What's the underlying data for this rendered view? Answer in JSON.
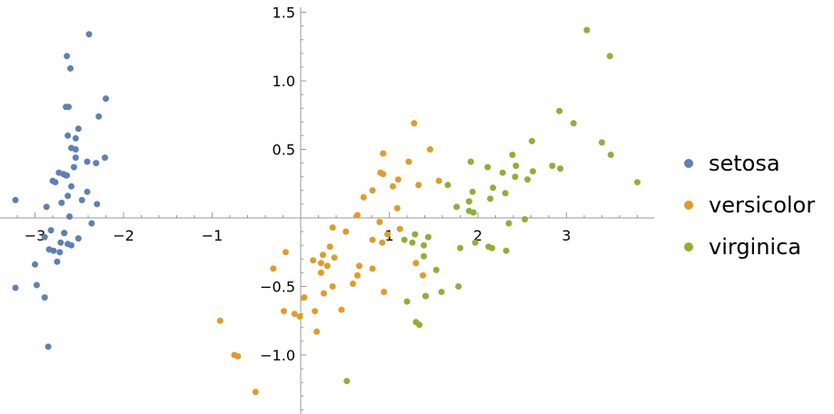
{
  "chart_data": {
    "type": "scatter",
    "title": "",
    "xlabel": "",
    "ylabel": "",
    "xlim": [
      -3.35,
      3.85
    ],
    "ylim": [
      -1.4,
      1.55
    ],
    "grid": false,
    "legend_position": "right",
    "x_ticks": [
      {
        "value": -3,
        "label": "−3"
      },
      {
        "value": -2,
        "label": "−2"
      },
      {
        "value": -1,
        "label": "−1"
      },
      {
        "value": 1,
        "label": "1"
      },
      {
        "value": 2,
        "label": "2"
      },
      {
        "value": 3,
        "label": "3"
      }
    ],
    "y_ticks": [
      {
        "value": 1.5,
        "label": "1.5"
      },
      {
        "value": 1.0,
        "label": "1.0"
      },
      {
        "value": 0.5,
        "label": "0.5"
      },
      {
        "value": -0.5,
        "label": "−0.5"
      },
      {
        "value": -1.0,
        "label": "−1.0"
      }
    ],
    "series": [
      {
        "name": "setosa",
        "color": "#5E81B5",
        "points": [
          [
            -2.68,
            0.32
          ],
          [
            -2.71,
            -0.18
          ],
          [
            -2.89,
            -0.14
          ],
          [
            -2.75,
            -0.32
          ],
          [
            -2.73,
            0.33
          ],
          [
            -2.28,
            0.74
          ],
          [
            -2.82,
            -0.09
          ],
          [
            -2.63,
            0.16
          ],
          [
            -2.89,
            -0.58
          ],
          [
            -2.67,
            -0.11
          ],
          [
            -2.51,
            0.65
          ],
          [
            -2.61,
            0.01
          ],
          [
            -2.79,
            -0.24
          ],
          [
            -3.22,
            -0.51
          ],
          [
            -2.64,
            1.18
          ],
          [
            -2.39,
            1.34
          ],
          [
            -2.62,
            0.81
          ],
          [
            -2.65,
            0.31
          ],
          [
            -2.2,
            0.87
          ],
          [
            -2.59,
            0.51
          ],
          [
            -2.31,
            0.4
          ],
          [
            -2.54,
            0.44
          ],
          [
            -3.22,
            0.13
          ],
          [
            -2.3,
            0.1
          ],
          [
            -2.36,
            -0.04
          ],
          [
            -2.51,
            -0.15
          ],
          [
            -2.47,
            0.13
          ],
          [
            -2.56,
            0.37
          ],
          [
            -2.64,
            0.31
          ],
          [
            -2.63,
            -0.19
          ],
          [
            -2.59,
            -0.2
          ],
          [
            -2.41,
            0.41
          ],
          [
            -2.65,
            0.81
          ],
          [
            -2.6,
            1.09
          ],
          [
            -2.67,
            -0.11
          ],
          [
            -2.87,
            0.08
          ],
          [
            -2.63,
            0.6
          ],
          [
            -2.8,
            0.27
          ],
          [
            -2.98,
            -0.49
          ],
          [
            -2.59,
            0.23
          ],
          [
            -2.77,
            0.26
          ],
          [
            -2.85,
            -0.94
          ],
          [
            -3.0,
            -0.34
          ],
          [
            -2.41,
            0.19
          ],
          [
            -2.21,
            0.44
          ],
          [
            -2.72,
            -0.25
          ],
          [
            -2.54,
            0.5
          ],
          [
            -2.84,
            -0.23
          ],
          [
            -2.54,
            0.58
          ],
          [
            -2.7,
            0.11
          ]
        ]
      },
      {
        "name": "versicolor",
        "color": "#E19C24",
        "points": [
          [
            1.28,
            0.69
          ],
          [
            0.93,
            0.32
          ],
          [
            1.46,
            0.5
          ],
          [
            0.18,
            -0.83
          ],
          [
            1.09,
            0.07
          ],
          [
            0.64,
            -0.42
          ],
          [
            1.1,
            0.28
          ],
          [
            -0.75,
            -1.0
          ],
          [
            1.04,
            0.23
          ],
          [
            -0.01,
            -0.72
          ],
          [
            -0.51,
            -1.27
          ],
          [
            0.51,
            -0.1
          ],
          [
            0.26,
            -0.55
          ],
          [
            0.98,
            -0.12
          ],
          [
            -0.17,
            -0.25
          ],
          [
            0.93,
            0.47
          ],
          [
            0.66,
            -0.35
          ],
          [
            0.23,
            -0.33
          ],
          [
            0.94,
            -0.54
          ],
          [
            0.04,
            -0.58
          ],
          [
            1.12,
            -0.08
          ],
          [
            0.36,
            -0.07
          ],
          [
            1.3,
            -0.33
          ],
          [
            0.92,
            -0.18
          ],
          [
            0.71,
            0.15
          ],
          [
            0.9,
            0.33
          ],
          [
            1.33,
            0.24
          ],
          [
            1.56,
            0.27
          ],
          [
            0.81,
            -0.16
          ],
          [
            -0.31,
            -0.37
          ],
          [
            -0.07,
            -0.7
          ],
          [
            -0.19,
            -0.68
          ],
          [
            0.14,
            -0.31
          ],
          [
            1.38,
            -0.42
          ],
          [
            0.59,
            -0.48
          ],
          [
            0.81,
            0.2
          ],
          [
            1.22,
            0.41
          ],
          [
            0.81,
            -0.37
          ],
          [
            0.25,
            -0.27
          ],
          [
            0.16,
            -0.68
          ],
          [
            0.46,
            -0.67
          ],
          [
            0.89,
            -0.03
          ],
          [
            0.23,
            -0.4
          ],
          [
            -0.71,
            -1.01
          ],
          [
            0.36,
            -0.5
          ],
          [
            0.33,
            -0.21
          ],
          [
            0.38,
            -0.29
          ],
          [
            0.64,
            0.02
          ],
          [
            -0.91,
            -0.75
          ],
          [
            0.3,
            -0.35
          ]
        ]
      },
      {
        "name": "virginica",
        "color": "#8FB032",
        "points": [
          [
            2.53,
            -0.01
          ],
          [
            1.41,
            -0.57
          ],
          [
            2.62,
            0.34
          ],
          [
            1.97,
            -0.18
          ],
          [
            2.35,
            -0.04
          ],
          [
            3.4,
            0.55
          ],
          [
            0.52,
            -1.19
          ],
          [
            2.93,
            0.36
          ],
          [
            2.32,
            -0.24
          ],
          [
            2.92,
            0.78
          ],
          [
            1.66,
            0.24
          ],
          [
            1.8,
            -0.22
          ],
          [
            2.17,
            0.22
          ],
          [
            1.34,
            -0.78
          ],
          [
            1.59,
            -0.54
          ],
          [
            1.9,
            0.12
          ],
          [
            1.95,
            0.04
          ],
          [
            3.49,
            1.18
          ],
          [
            3.8,
            0.26
          ],
          [
            1.3,
            -0.76
          ],
          [
            2.43,
            0.38
          ],
          [
            1.2,
            -0.61
          ],
          [
            3.5,
            0.46
          ],
          [
            1.39,
            -0.2
          ],
          [
            2.28,
            0.33
          ],
          [
            2.61,
            0.56
          ],
          [
            1.26,
            -0.18
          ],
          [
            1.29,
            -0.12
          ],
          [
            2.12,
            -0.21
          ],
          [
            2.39,
            0.46
          ],
          [
            2.84,
            0.38
          ],
          [
            3.23,
            1.37
          ],
          [
            2.16,
            -0.22
          ],
          [
            1.44,
            -0.14
          ],
          [
            1.78,
            -0.5
          ],
          [
            3.08,
            0.69
          ],
          [
            2.14,
            0.14
          ],
          [
            1.9,
            0.05
          ],
          [
            1.17,
            -0.16
          ],
          [
            2.11,
            0.37
          ],
          [
            2.31,
            0.18
          ],
          [
            1.92,
            0.41
          ],
          [
            1.41,
            -0.57
          ],
          [
            2.56,
            0.28
          ],
          [
            2.42,
            0.3
          ],
          [
            1.94,
            0.19
          ],
          [
            1.53,
            -0.38
          ],
          [
            1.76,
            0.08
          ],
          [
            1.9,
            0.12
          ],
          [
            1.39,
            -0.28
          ]
        ]
      }
    ]
  }
}
